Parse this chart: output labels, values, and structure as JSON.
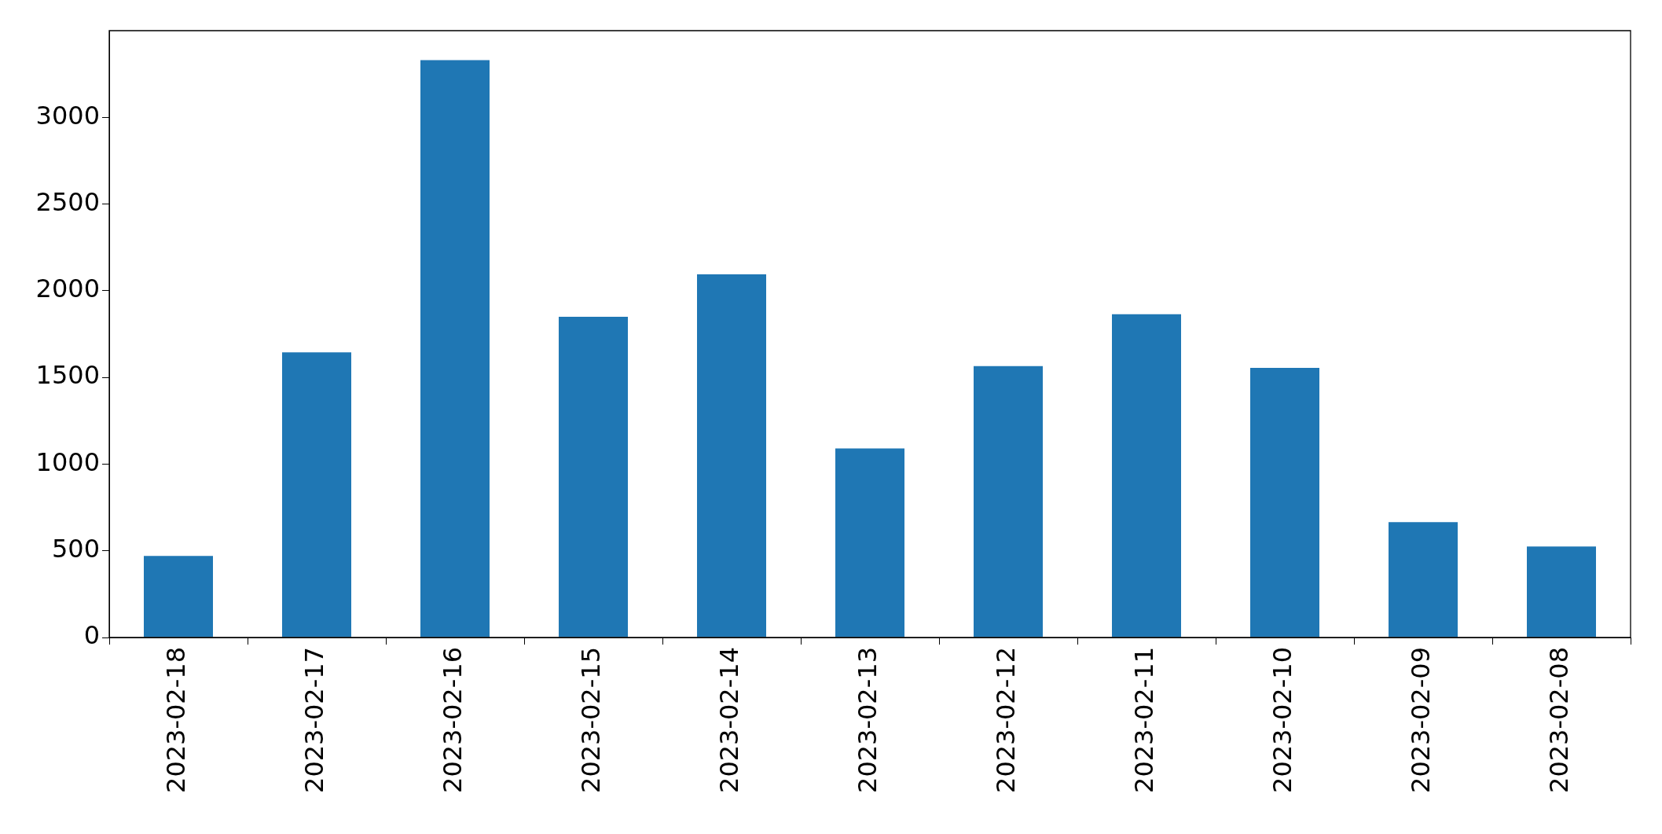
{
  "chart_data": {
    "type": "bar",
    "categories": [
      "2023-02-18",
      "2023-02-17",
      "2023-02-16",
      "2023-02-15",
      "2023-02-14",
      "2023-02-13",
      "2023-02-12",
      "2023-02-11",
      "2023-02-10",
      "2023-02-09",
      "2023-02-08"
    ],
    "values": [
      470,
      1645,
      3330,
      1850,
      2095,
      1090,
      1565,
      1865,
      1555,
      665,
      525
    ],
    "color": "#1f77b4",
    "ylim": [
      0,
      3500
    ],
    "yticks": [
      0,
      500,
      1000,
      1500,
      2000,
      2500,
      3000
    ],
    "grid": false,
    "legend": false
  }
}
